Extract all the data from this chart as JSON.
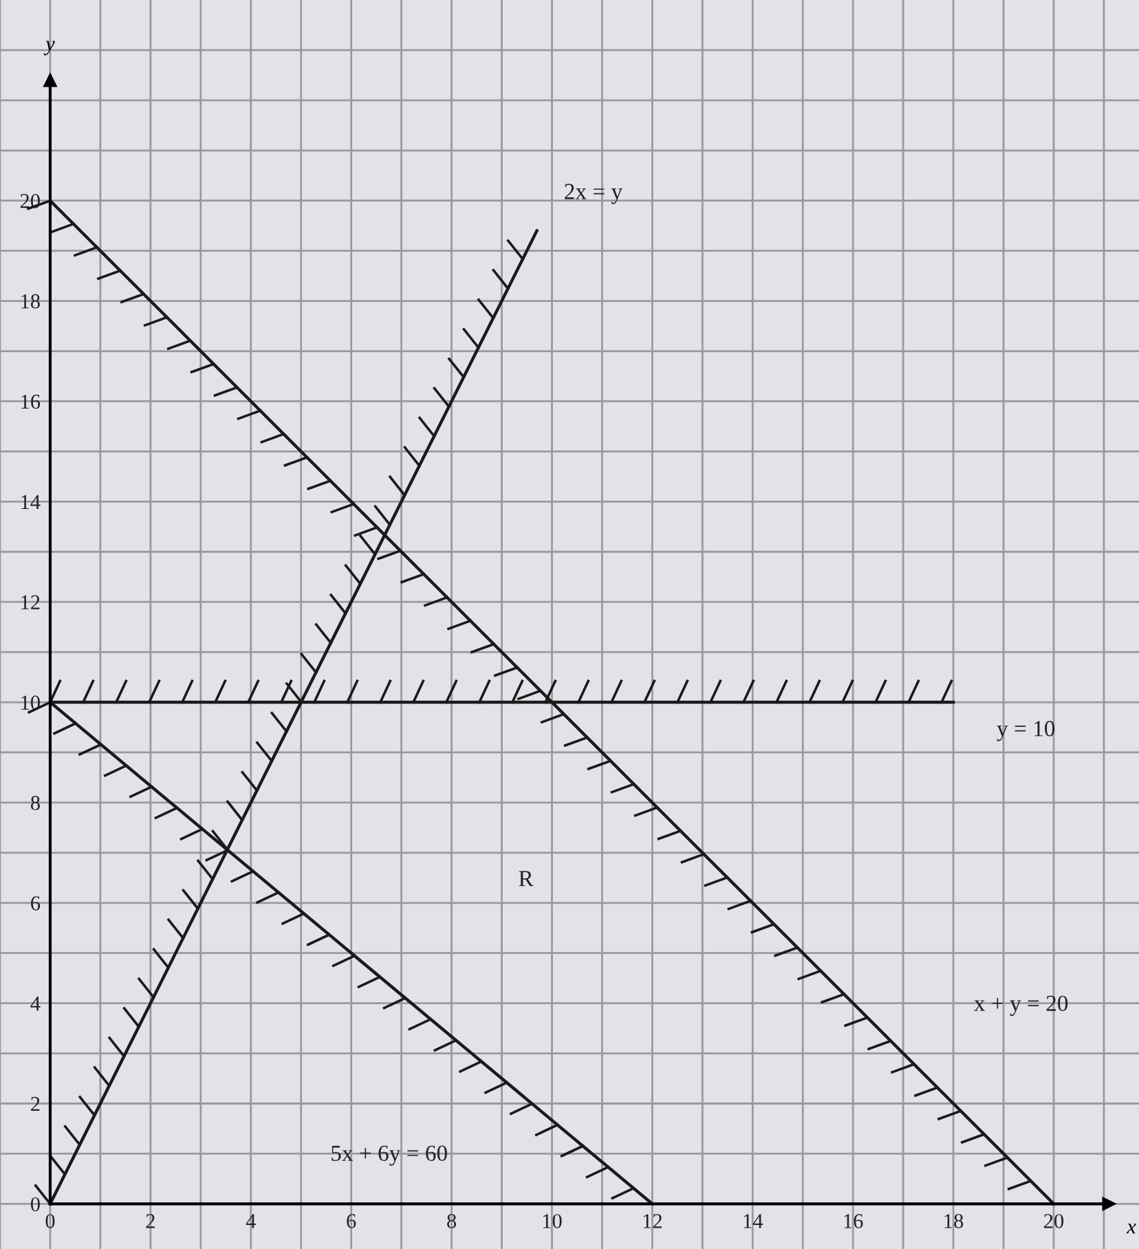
{
  "chart_data": {
    "type": "line",
    "xlabel": "x",
    "ylabel": "y",
    "xlim": [
      -1,
      21.7
    ],
    "ylim": [
      -0.9,
      24
    ],
    "xticks": [
      {
        "value": -1,
        "label": null
      },
      0,
      {
        "value": 1,
        "label": null
      },
      2,
      {
        "value": 3,
        "label": null
      },
      4,
      {
        "value": 5,
        "label": null
      },
      6,
      {
        "value": 7,
        "label": null
      },
      8,
      {
        "value": 9,
        "label": null
      },
      10,
      {
        "value": 11,
        "label": null
      },
      12,
      {
        "value": 13,
        "label": null
      },
      14,
      {
        "value": 15,
        "label": null
      },
      16,
      {
        "value": 17,
        "label": null
      },
      18,
      {
        "value": 19,
        "label": null
      },
      20,
      {
        "value": 21,
        "label": null
      }
    ],
    "yticks": [
      0,
      {
        "value": 1,
        "label": null
      },
      2,
      {
        "value": 3,
        "label": null
      },
      4,
      {
        "value": 5,
        "label": null
      },
      6,
      {
        "value": 7,
        "label": null
      },
      8,
      {
        "value": 9,
        "label": null
      },
      10,
      {
        "value": 11,
        "label": null
      },
      12,
      {
        "value": 13,
        "label": null
      },
      14,
      {
        "value": 15,
        "label": null
      },
      16,
      {
        "value": 17,
        "label": null
      },
      18,
      {
        "value": 19,
        "label": null
      },
      20,
      {
        "value": 21,
        "label": null
      },
      {
        "value": 22,
        "label": null
      },
      {
        "value": 23,
        "label": null
      }
    ],
    "grid": true,
    "marker": "none",
    "line_style": "solid",
    "series": [
      {
        "color": "#1a1a1a",
        "x": [
          0,
          9.7
        ],
        "values": [
          0,
          19.4
        ]
      },
      {
        "color": "#1a1a1a",
        "x": [
          0,
          20
        ],
        "values": [
          20,
          0
        ]
      },
      {
        "color": "#1a1a1a",
        "x": [
          0,
          18
        ],
        "values": [
          10,
          10
        ]
      },
      {
        "color": "#1a1a1a",
        "x": [
          0,
          12
        ],
        "values": [
          10,
          0
        ]
      }
    ],
    "annotations": [
      "2x = y",
      "y = 10",
      "x + y = 20",
      "5x + 6y = 60",
      "R"
    ]
  }
}
